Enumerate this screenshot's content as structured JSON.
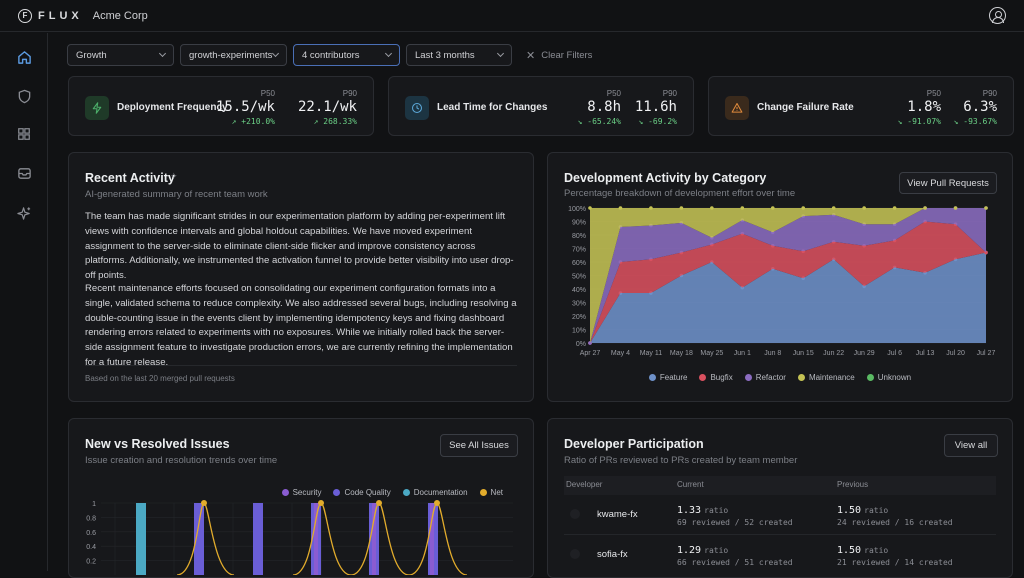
{
  "topbar": {
    "logo_letter": "F",
    "logo_text": "FLUX",
    "org": "Acme Corp"
  },
  "filters": [
    {
      "label": "Growth",
      "width": 107
    },
    {
      "label": "growth-experiments",
      "width": 107
    },
    {
      "label": "4 contributors",
      "width": 107
    },
    {
      "label": "Last 3 months",
      "width": 106
    }
  ],
  "clear_filters": "Clear Filters",
  "metrics": [
    {
      "icon": "bolt-icon",
      "icon_color": "#4caf6a",
      "icon_bg": "#1f3a28",
      "label": "Deployment Frequency",
      "p50_tag": "P50",
      "p50": "15.5/wk",
      "p50_delta": "↗ +210.0%",
      "p90_tag": "P90",
      "p90": "22.1/wk",
      "p90_delta": "↗ 268.33%"
    },
    {
      "icon": "clock-icon",
      "icon_color": "#5ba6d6",
      "icon_bg": "#1c3442",
      "label": "Lead Time for Changes",
      "p50_tag": "P50",
      "p50": "8.8h",
      "p50_delta": "↘ -65.24%",
      "p90_tag": "P90",
      "p90": "11.6h",
      "p90_delta": "↘ -69.2%"
    },
    {
      "icon": "warning-icon",
      "icon_color": "#e08a3c",
      "icon_bg": "#3a2a1c",
      "label": "Change Failure Rate",
      "p50_tag": "P50",
      "p50": "1.8%",
      "p50_delta": "↘ -91.07%",
      "p90_tag": "P90",
      "p90": "6.3%",
      "p90_delta": "↘ -93.67%"
    }
  ],
  "recent": {
    "title": "Recent Activity",
    "subtitle": "AI-generated summary of recent team work",
    "para1": "The team has made significant strides in our experimentation platform by adding per-experiment lift views with confidence intervals and global holdout capabilities. We have moved experiment assignment to the server-side to eliminate client-side flicker and improve consistency across platforms. Additionally, we instrumented the activation funnel to provide better visibility into user drop-off points.",
    "para2": "Recent maintenance efforts focused on consolidating our experiment configuration formats into a single, validated schema to reduce complexity. We also addressed several bugs, including resolving a double-counting issue in the events client by implementing idempotency keys and fixing dashboard rendering errors related to experiments with no exposures. While we initially rolled back the server-side assignment feature to investigate production errors, we are currently refining the implementation for a future release.",
    "footer": "Based on the last 20 merged pull requests"
  },
  "dev_activity": {
    "title": "Development Activity by Category",
    "subtitle": "Percentage breakdown of development effort over time",
    "button": "View Pull Requests"
  },
  "chart_data": [
    {
      "type": "area",
      "stacked": true,
      "x": [
        "Apr 27",
        "May 4",
        "May 11",
        "May 18",
        "May 25",
        "Jun 1",
        "Jun 8",
        "Jun 15",
        "Jun 22",
        "Jun 29",
        "Jul 6",
        "Jul 13",
        "Jul 20",
        "Jul 27"
      ],
      "y_ticks": [
        "0%",
        "10%",
        "20%",
        "30%",
        "40%",
        "50%",
        "60%",
        "70%",
        "80%",
        "90%",
        "100%"
      ],
      "ylim": [
        0,
        100
      ],
      "series": [
        {
          "name": "Feature",
          "color": "#6e91c9",
          "values": [
            0,
            37,
            37,
            50,
            60,
            41,
            55,
            48,
            62,
            42,
            56,
            52,
            62,
            67
          ]
        },
        {
          "name": "Bugfix",
          "color": "#d9505f",
          "values": [
            0,
            23,
            25,
            17,
            13,
            40,
            17,
            20,
            13,
            30,
            20,
            38,
            26,
            0
          ]
        },
        {
          "name": "Refactor",
          "color": "#8b6cc0",
          "values": [
            0,
            26,
            25,
            22,
            5,
            10,
            10,
            26,
            20,
            16,
            12,
            10,
            12,
            33
          ]
        },
        {
          "name": "Maintenance",
          "color": "#c4c254",
          "values": [
            100,
            14,
            13,
            11,
            22,
            9,
            18,
            6,
            5,
            12,
            12,
            0,
            0,
            0
          ]
        },
        {
          "name": "Unknown",
          "color": "#5aba63",
          "values": [
            0,
            0,
            0,
            0,
            0,
            0,
            0,
            0,
            0,
            0,
            0,
            0,
            0,
            0
          ]
        }
      ]
    },
    {
      "type": "bar",
      "ylim": [
        0,
        1
      ],
      "y_ticks": [
        "1",
        "0.8",
        "0.6",
        "0.4",
        "0.2"
      ],
      "series": [
        {
          "name": "Security",
          "color": "#8a5cd1"
        },
        {
          "name": "Code Quality",
          "color": "#6a5ed6"
        },
        {
          "name": "Documentation",
          "color": "#4ba9c4"
        },
        {
          "name": "Net",
          "color": "#e2ac2c"
        }
      ]
    }
  ],
  "issues": {
    "title": "New vs Resolved Issues",
    "subtitle": "Issue creation and resolution trends over time",
    "button": "See All Issues"
  },
  "participation": {
    "title": "Developer Participation",
    "subtitle": "Ratio of PRs reviewed to PRs created by team member",
    "button": "View all",
    "columns": [
      "Developer",
      "Current",
      "Previous"
    ],
    "rows": [
      {
        "name": "kwame-fx",
        "cur": "1.33",
        "cur_unit": "ratio",
        "cur_detail": "69 reviewed / 52 created",
        "prev": "1.50",
        "prev_unit": "ratio",
        "prev_detail": "24 reviewed / 16 created"
      },
      {
        "name": "sofia-fx",
        "cur": "1.29",
        "cur_unit": "ratio",
        "cur_detail": "66 reviewed / 51 created",
        "prev": "1.50",
        "prev_unit": "ratio",
        "prev_detail": "21 reviewed / 14 created"
      }
    ]
  }
}
